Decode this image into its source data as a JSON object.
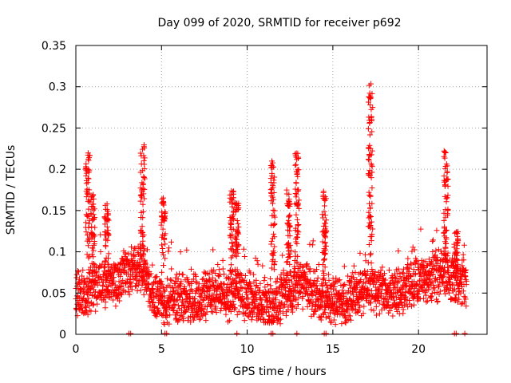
{
  "chart_data": {
    "type": "scatter",
    "title": "Day 099 of 2020, SRMTID for receiver p692",
    "xlabel": "GPS time / hours",
    "ylabel": "SRMTID / TECUs",
    "xlim": [
      0,
      24
    ],
    "ylim": [
      0,
      0.35
    ],
    "xticks": [
      0,
      5,
      10,
      15,
      20
    ],
    "xtick_labels": [
      "0",
      "5",
      "10",
      "15",
      "20"
    ],
    "yticks": [
      0,
      0.05,
      0.1,
      0.15,
      0.2,
      0.25,
      0.3,
      0.35
    ],
    "ytick_labels": [
      "0",
      "0.05",
      "0.1",
      "0.15",
      "0.2",
      "0.25",
      "0.3",
      "0.35"
    ],
    "grid": true,
    "marker": "plus",
    "color": "#ff0000",
    "point_count_estimate": 2400,
    "baseline_profile": {
      "x": [
        0,
        0.5,
        1,
        1.5,
        2,
        2.5,
        3,
        3.5,
        4,
        4.5,
        5,
        5.5,
        6,
        6.5,
        7,
        7.5,
        8,
        8.5,
        9,
        9.5,
        10,
        10.5,
        11,
        11.5,
        12,
        12.5,
        13,
        13.5,
        14,
        14.5,
        15,
        15.5,
        16,
        16.5,
        17,
        17.5,
        18,
        18.5,
        19,
        19.5,
        20,
        20.5,
        21,
        21.5,
        22,
        22.5
      ],
      "y": [
        0.045,
        0.05,
        0.055,
        0.06,
        0.06,
        0.065,
        0.075,
        0.085,
        0.075,
        0.05,
        0.04,
        0.04,
        0.045,
        0.04,
        0.04,
        0.045,
        0.055,
        0.05,
        0.045,
        0.055,
        0.045,
        0.04,
        0.035,
        0.035,
        0.045,
        0.055,
        0.06,
        0.055,
        0.05,
        0.045,
        0.04,
        0.04,
        0.045,
        0.05,
        0.06,
        0.055,
        0.05,
        0.045,
        0.05,
        0.06,
        0.065,
        0.065,
        0.07,
        0.075,
        0.065,
        0.06
      ]
    },
    "spikes": [
      {
        "x": 0.7,
        "peak": 0.22
      },
      {
        "x": 1.0,
        "peak": 0.17
      },
      {
        "x": 1.8,
        "peak": 0.16
      },
      {
        "x": 3.9,
        "peak": 0.23
      },
      {
        "x": 5.1,
        "peak": 0.17
      },
      {
        "x": 9.1,
        "peak": 0.175
      },
      {
        "x": 9.4,
        "peak": 0.16
      },
      {
        "x": 11.5,
        "peak": 0.21
      },
      {
        "x": 12.4,
        "peak": 0.175
      },
      {
        "x": 12.9,
        "peak": 0.22
      },
      {
        "x": 14.5,
        "peak": 0.175
      },
      {
        "x": 17.2,
        "peak": 0.305
      },
      {
        "x": 21.6,
        "peak": 0.225
      },
      {
        "x": 22.2,
        "peak": 0.13
      }
    ],
    "zero_points_x": [
      3.1,
      3.2,
      5.2,
      5.3,
      9.4,
      11.4,
      11.5,
      12.9,
      14.5,
      14.6,
      22.1,
      22.2,
      22.7
    ]
  }
}
